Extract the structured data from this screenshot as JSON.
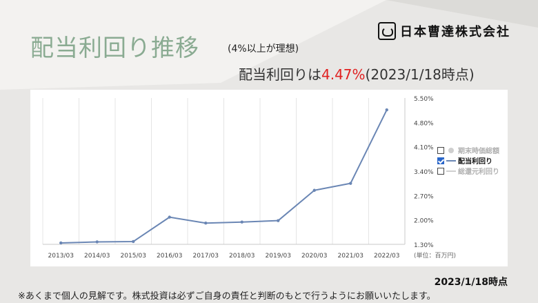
{
  "header": {
    "title": "配当利回り推移",
    "subtitle": "(4%以上が理想)",
    "logo_text": "日本曹達株式会社",
    "yield_prefix": "配当利回りは",
    "yield_value": "4.47%",
    "yield_suffix": "(2023/1/18時点)"
  },
  "legend": [
    {
      "label": "期末時価総額",
      "checked": false,
      "mark": "dot"
    },
    {
      "label": "配当利回り",
      "checked": true,
      "mark": "line"
    },
    {
      "label": "総還元利回り",
      "checked": false,
      "mark": "line-grey"
    }
  ],
  "footer": {
    "asof": "2023/1/18時点",
    "note": "※あくまで個人の見解です。株式投資は必ずご自身の責任と判断のもとで行うようにお願いいたします。"
  },
  "colors": {
    "series": "#6a86b4",
    "title": "#8aab92",
    "highlight": "#e02020"
  },
  "chart_data": {
    "type": "line",
    "categories": [
      "2013/03",
      "2014/03",
      "2015/03",
      "2016/03",
      "2017/03",
      "2018/03",
      "2019/03",
      "2020/03",
      "2021/03",
      "2022/03"
    ],
    "series": [
      {
        "name": "配当利回り",
        "values": [
          1.34,
          1.37,
          1.38,
          2.08,
          1.91,
          1.94,
          1.98,
          2.85,
          3.05,
          5.16
        ]
      }
    ],
    "yticks": [
      "5.50%",
      "4.80%",
      "4.10%",
      "3.40%",
      "2.70%",
      "2.00%",
      "1.30%"
    ],
    "ytick_values": [
      5.5,
      4.8,
      4.1,
      3.4,
      2.7,
      2.0,
      1.3
    ],
    "ylim": [
      1.3,
      5.5
    ],
    "unit_label": "(単位：百万円)",
    "grid": "vertical"
  }
}
